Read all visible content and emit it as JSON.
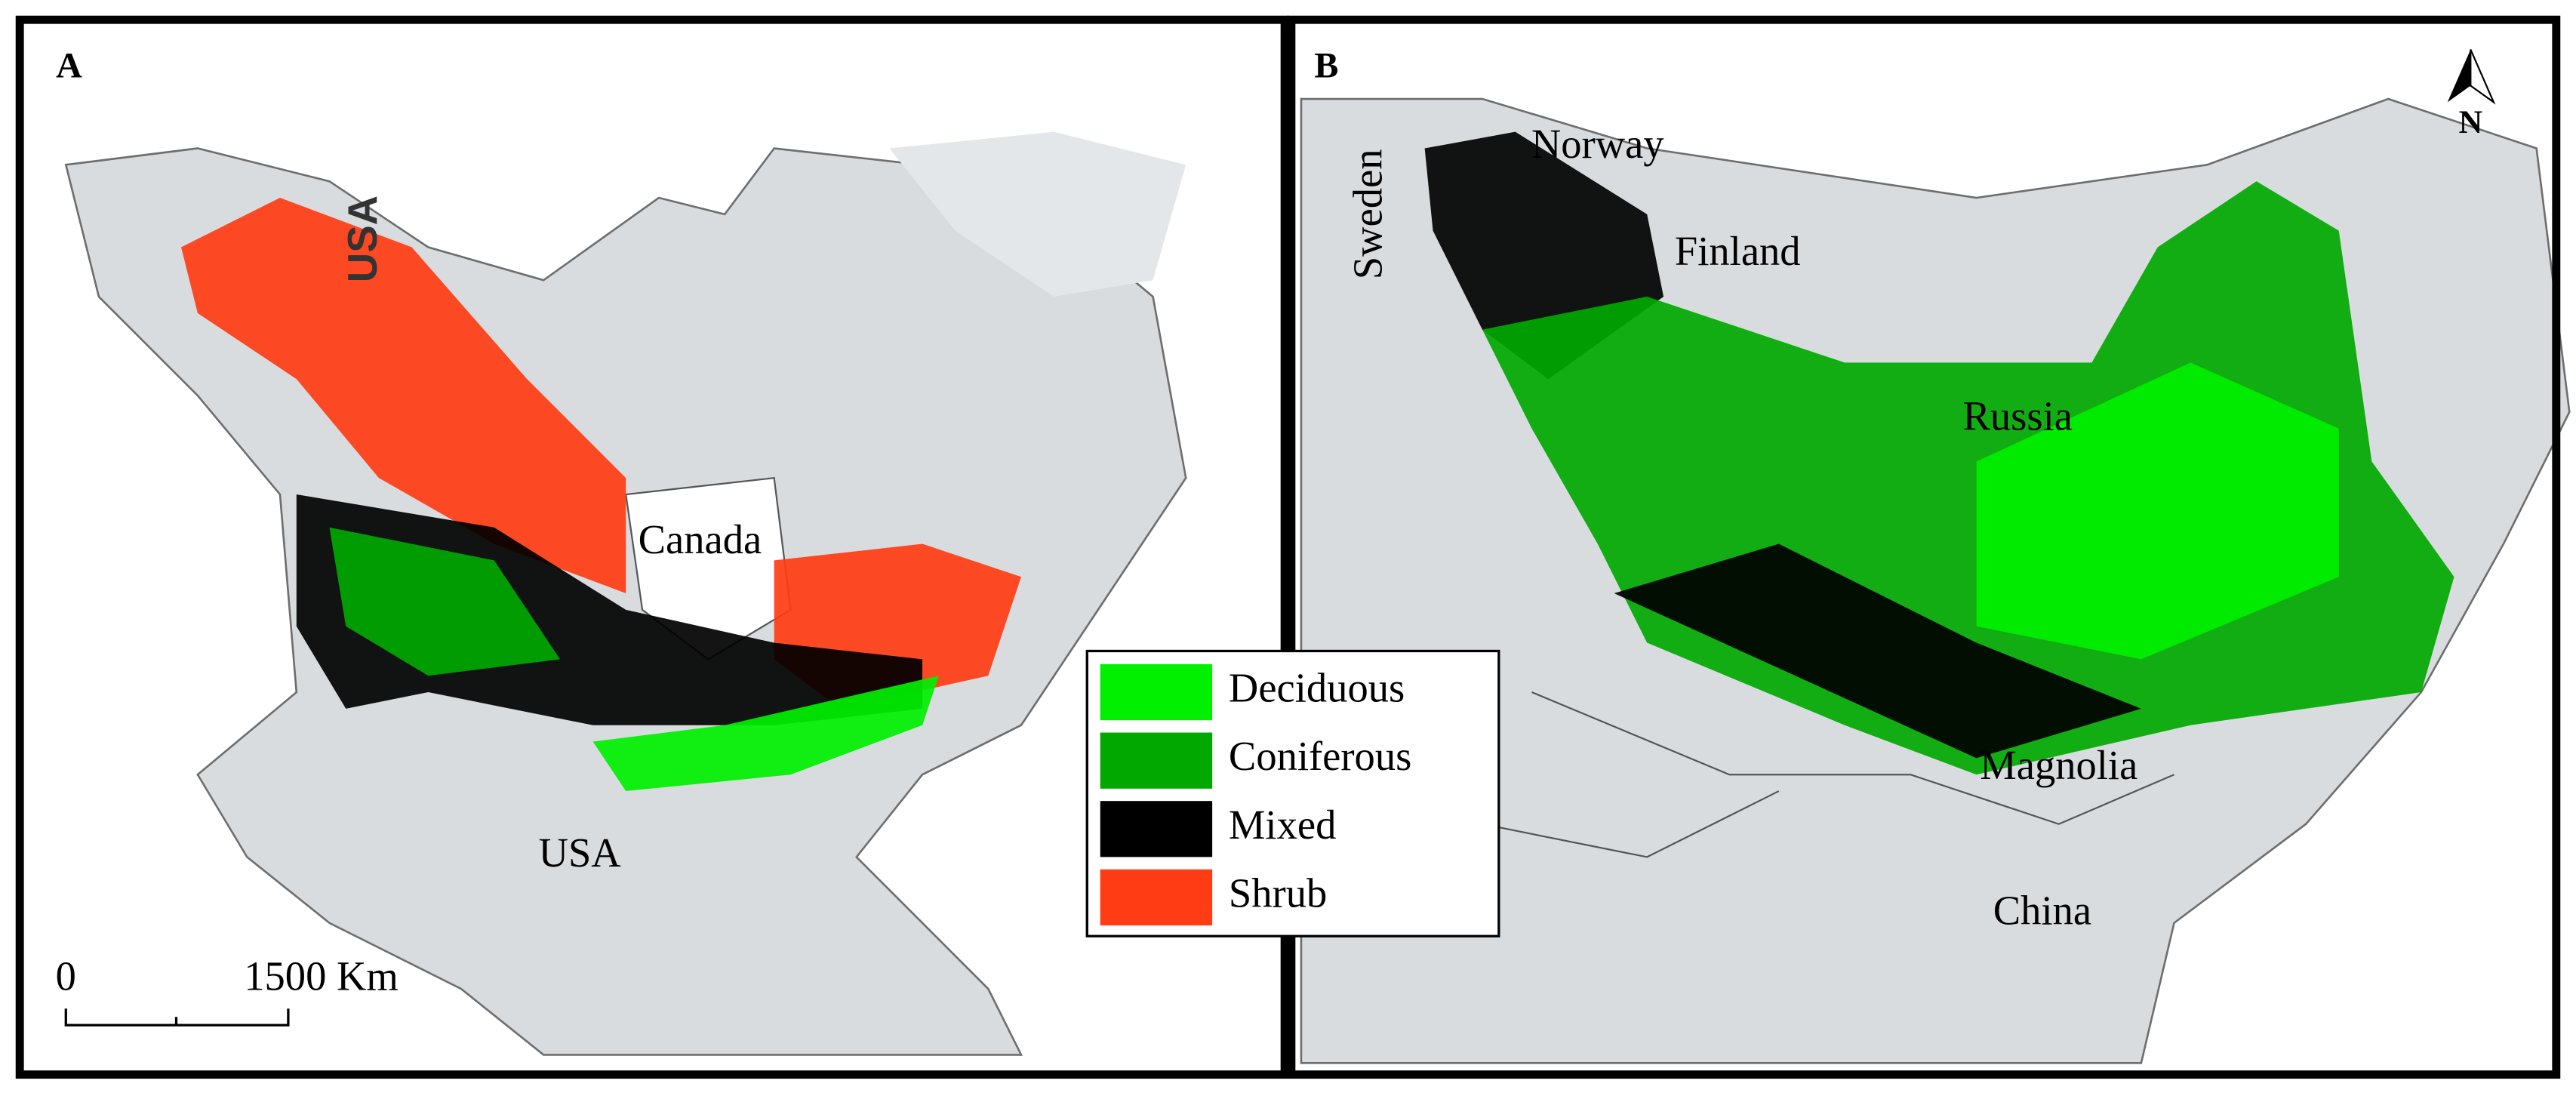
{
  "panels": [
    {
      "label": "A",
      "places": [
        "USA",
        "Canada",
        "USA"
      ],
      "scale_bar": {
        "start": "0",
        "end": "1500 Km"
      }
    },
    {
      "label": "B",
      "places": [
        "Norway",
        "Finland",
        "Sweden",
        "Russia",
        "Magnolia",
        "China"
      ],
      "north": "N"
    }
  ],
  "legend": [
    {
      "label": "Deciduous",
      "color": "#00f000"
    },
    {
      "label": "Coniferous",
      "color": "#00a800"
    },
    {
      "label": "Mixed",
      "color": "#000000"
    },
    {
      "label": "Shrub",
      "color": "#ff3c14"
    }
  ]
}
